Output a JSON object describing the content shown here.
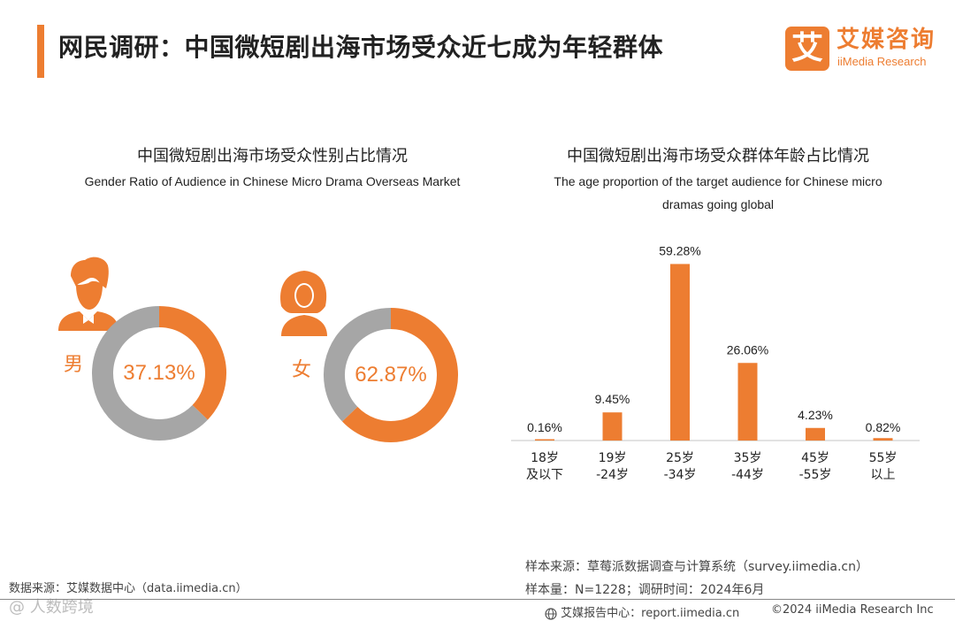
{
  "header": {
    "title": "网民调研：中国微短剧出海市场受众近七成为年轻群体",
    "logo_mark": "艾",
    "logo_cn": "艾媒咨询",
    "logo_en": "iiMedia Research"
  },
  "colors": {
    "accent": "#ED7D31",
    "secondary": "#A6A6A6",
    "axis": "#D9D9D9"
  },
  "gender_panel": {
    "title_cn": "中国微短剧出海市场受众性别占比情况",
    "title_en": "Gender Ratio of Audience in Chinese Micro Drama Overseas Market",
    "male_label": "男",
    "female_label": "女",
    "male_icon": "male-user-icon",
    "female_icon": "female-user-icon"
  },
  "age_panel": {
    "title_cn": "中国微短剧出海市场受众群体年龄占比情况",
    "title_en_line1": "The age proportion of the target audience for Chinese micro",
    "title_en_line2": "dramas going global"
  },
  "chart_data": [
    {
      "type": "pie",
      "variant": "donut",
      "categories": [
        "男",
        ""
      ],
      "values": [
        37.13,
        62.87
      ],
      "center_label": "37.13%"
    },
    {
      "type": "pie",
      "variant": "donut",
      "categories": [
        "女",
        ""
      ],
      "values": [
        62.87,
        37.13
      ],
      "center_label": "62.87%"
    },
    {
      "type": "bar",
      "categories": [
        "18岁\n及以下",
        "19岁\n-24岁",
        "25岁\n-34岁",
        "35岁\n-44岁",
        "45岁\n-55岁",
        "55岁\n以上"
      ],
      "values": [
        0.16,
        9.45,
        59.28,
        26.06,
        4.23,
        0.82
      ],
      "value_labels": [
        "0.16%",
        "9.45%",
        "59.28%",
        "26.06%",
        "4.23%",
        "0.82%"
      ],
      "ylim": [
        0,
        60
      ],
      "grid": false
    }
  ],
  "footer": {
    "source_left": "数据来源：艾媒数据中心（data.iimedia.cn）",
    "sample_source": "样本来源：草莓派数据调查与计算系统（survey.iimedia.cn）",
    "sample_size": "样本量：N=1228；调研时间：2024年6月",
    "report_center": "艾媒报告中心：report.iimedia.cn",
    "copyright": "©2024  iiMedia Research  Inc",
    "watermark": "@  人数跨境",
    "globe_icon": "globe-icon"
  }
}
